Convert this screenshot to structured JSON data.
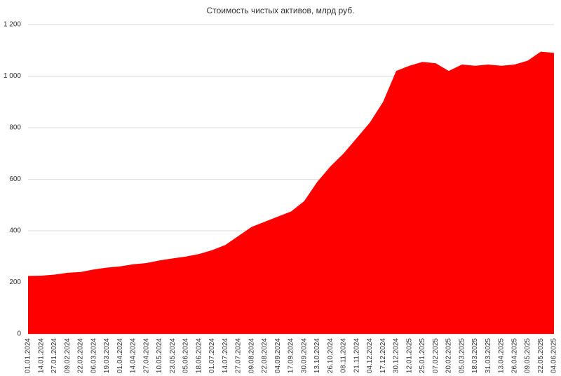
{
  "chart_data": {
    "type": "area",
    "title": "Стоимость чистых активов, млрд руб.",
    "categories": [
      "01.01.2024",
      "14.01.2024",
      "27.01.2024",
      "09.02.2024",
      "22.02.2024",
      "06.03.2024",
      "19.03.2024",
      "01.04.2024",
      "14.04.2024",
      "27.04.2024",
      "10.05.2024",
      "23.05.2024",
      "05.06.2024",
      "18.06.2024",
      "01.07.2024",
      "14.07.2024",
      "27.07.2024",
      "09.08.2024",
      "22.08.2024",
      "04.09.2024",
      "17.09.2024",
      "30.09.2024",
      "13.10.2024",
      "26.10.2024",
      "08.11.2024",
      "21.11.2024",
      "04.12.2024",
      "17.12.2024",
      "30.12.2024",
      "12.01.2025",
      "25.01.2025",
      "07.02.2025",
      "20.02.2025",
      "05.03.2025",
      "18.03.2025",
      "31.03.2025",
      "13.04.2025",
      "26.04.2025",
      "09.05.2025",
      "22.05.2025",
      "04.06.2025"
    ],
    "values": [
      225,
      226,
      230,
      237,
      240,
      250,
      257,
      262,
      270,
      275,
      285,
      293,
      300,
      310,
      325,
      345,
      380,
      415,
      435,
      455,
      475,
      515,
      590,
      650,
      700,
      760,
      820,
      900,
      1020,
      1040,
      1055,
      1050,
      1020,
      1045,
      1040,
      1045,
      1040,
      1045,
      1060,
      1095,
      1090
    ],
    "color": "#ff0000",
    "ylim": [
      0,
      1200
    ],
    "yticks": [
      0,
      200,
      400,
      600,
      800,
      {
        "value": 1000,
        "label": "1 000"
      },
      {
        "value": 1200,
        "label": "1 200"
      }
    ],
    "grid": true
  }
}
